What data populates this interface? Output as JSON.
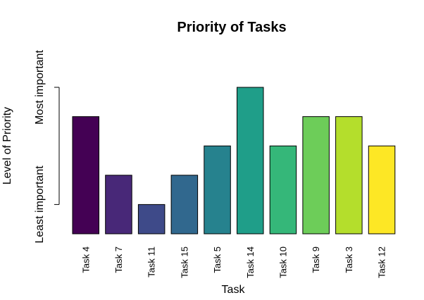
{
  "chart_data": {
    "type": "bar",
    "title": "Priority of Tasks",
    "xlabel": "Task",
    "ylabel": "Level of Priority",
    "categories": [
      "Task 4",
      "Task 7",
      "Task 11",
      "Task 15",
      "Task 5",
      "Task 14",
      "Task 10",
      "Task 9",
      "Task 3",
      "Task 12"
    ],
    "values": [
      4,
      2,
      1,
      2,
      3,
      5,
      3,
      4,
      4,
      3
    ],
    "ylim": [
      0,
      5
    ],
    "y_axis_ticks": [
      {
        "value": 1,
        "label": "Least important"
      },
      {
        "value": 5,
        "label": "Most important"
      }
    ],
    "colors": [
      "#440154",
      "#482878",
      "#3e4a89",
      "#31688e",
      "#26828e",
      "#1f9e89",
      "#35b779",
      "#6dcd59",
      "#b4de2c",
      "#fde725"
    ],
    "grid": false,
    "legend": "none"
  }
}
